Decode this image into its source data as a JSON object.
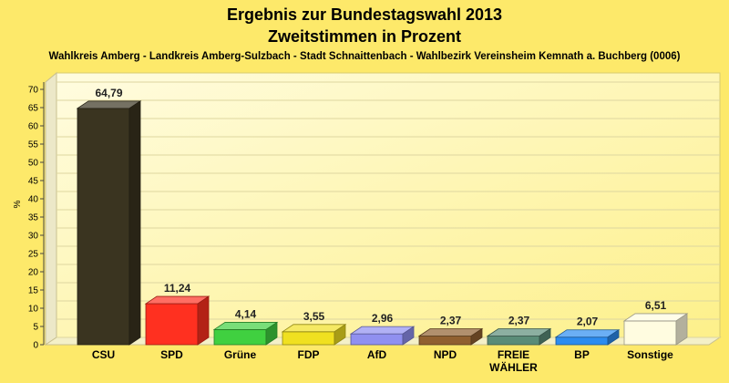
{
  "chart_data": {
    "type": "bar",
    "title": "Ergebnis zur Bundestagswahl 2013",
    "title_line2": "Zweitstimmen in Prozent",
    "subtitle": "Wahlkreis Amberg - Landkreis Amberg-Sulzbach - Stadt Schnaittenbach - Wahlbezirk Vereinsheim Kemnath a. Buchberg (0006)",
    "xlabel": "",
    "ylabel": "%",
    "ylim": [
      0,
      70
    ],
    "yticks": [
      0,
      5,
      10,
      15,
      20,
      25,
      30,
      35,
      40,
      45,
      50,
      55,
      60,
      65,
      70
    ],
    "categories": [
      "CSU",
      "SPD",
      "Grüne",
      "FDP",
      "AfD",
      "NPD",
      "FREIE WÄHLER",
      "BP",
      "Sonstige"
    ],
    "category_lines": [
      [
        "CSU"
      ],
      [
        "SPD"
      ],
      [
        "Grüne"
      ],
      [
        "FDP"
      ],
      [
        "AfD"
      ],
      [
        "NPD"
      ],
      [
        "FREIE",
        "WÄHLER"
      ],
      [
        "BP"
      ],
      [
        "Sonstige"
      ]
    ],
    "values": [
      64.79,
      11.24,
      4.14,
      3.55,
      2.96,
      2.37,
      2.37,
      2.07,
      6.51
    ],
    "value_labels": [
      "64,79",
      "11,24",
      "4,14",
      "3,55",
      "2,96",
      "2,37",
      "2,37",
      "2,07",
      "6,51"
    ],
    "colors": [
      "#3a3420",
      "#ff3020",
      "#40d040",
      "#f0e020",
      "#9090f0",
      "#906030",
      "#5a8c78",
      "#2c8cf0",
      "#fffce0"
    ],
    "grid": true,
    "legend": "none"
  }
}
